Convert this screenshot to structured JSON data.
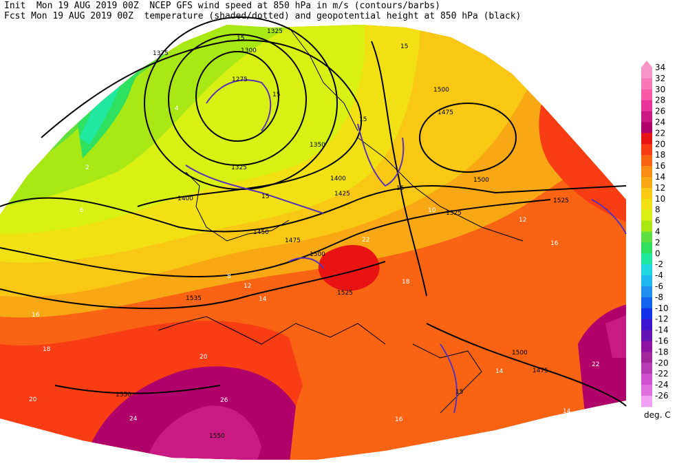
{
  "header": {
    "line1": "Init  Mon 19 AUG 2019 00Z  NCEP GFS wind speed at 850 hPa in m/s (contours/barbs)",
    "line2": "Fcst Mon 19 AUG 2019 00Z  temperature (shaded/dotted) and geopotential height at 850 hPa (black)"
  },
  "legend": {
    "unit": "deg. C",
    "ticks": [
      "34",
      "32",
      "30",
      "28",
      "26",
      "24",
      "22",
      "20",
      "18",
      "16",
      "14",
      "12",
      "10",
      "8",
      "6",
      "4",
      "2",
      "0",
      "-2",
      "-4",
      "-6",
      "-8",
      "-10",
      "-12",
      "-14",
      "-16",
      "-18",
      "-20",
      "-22",
      "-24",
      "-26"
    ],
    "colors": [
      "#f896c8",
      "#f878b8",
      "#f85aa8",
      "#e83498",
      "#c81a82",
      "#b0006a",
      "#e81414",
      "#f83c14",
      "#f86414",
      "#f88c14",
      "#f8a814",
      "#f8c814",
      "#f0e014",
      "#d8f014",
      "#a8e814",
      "#60e040",
      "#30e060",
      "#20e8a0",
      "#20d8e0",
      "#20b8f0",
      "#2090f0",
      "#1464f0",
      "#1432e8",
      "#3c14d0",
      "#6414b4",
      "#8c14a0",
      "#a0289c",
      "#b43cb4",
      "#d050d0",
      "#e070e0",
      "#f0a0f0"
    ]
  },
  "contour_labels": [
    "1325",
    "1300",
    "1275",
    "1375",
    "1350",
    "1325",
    "1400",
    "1425",
    "1400",
    "1450",
    "1475",
    "1500",
    "1525",
    "1535",
    "1550",
    "1550",
    "1500",
    "1475",
    "1500",
    "1525",
    "1525",
    "1500",
    "1475"
  ],
  "temp_labels": [
    "20",
    "18",
    "16",
    "14",
    "12",
    "10",
    "8",
    "6",
    "4",
    "2",
    "22",
    "20",
    "18",
    "16",
    "14",
    "12",
    "26",
    "24",
    "22",
    "16",
    "14"
  ],
  "wind_labels": [
    "15",
    "15",
    "15",
    "15",
    "15",
    "15",
    "15"
  ]
}
